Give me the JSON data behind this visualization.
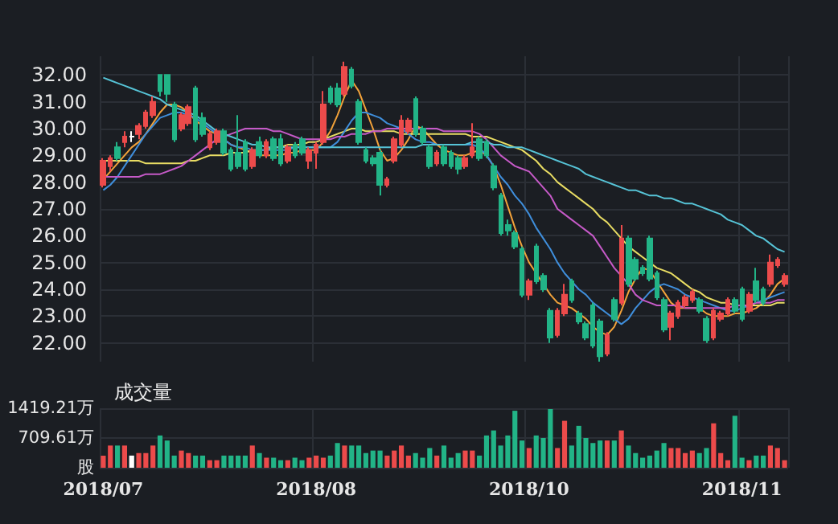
{
  "chart_data": [
    {
      "type": "candlestick",
      "tick_labels": "y",
      "grid": true,
      "categories": [
        "2018/07",
        null,
        null,
        null,
        null,
        null,
        null,
        null,
        null,
        null,
        null,
        null,
        null,
        null,
        null,
        null,
        null,
        null,
        null,
        null,
        null,
        null,
        null,
        null,
        null,
        null,
        null,
        null,
        null,
        null,
        "2018/08",
        null,
        null,
        null,
        null,
        null,
        null,
        null,
        null,
        null,
        null,
        null,
        null,
        null,
        null,
        null,
        null,
        null,
        null,
        null,
        null,
        null,
        null,
        null,
        null,
        null,
        null,
        null,
        null,
        null,
        "2018/10",
        null,
        null,
        null,
        null,
        null,
        null,
        null,
        null,
        null,
        null,
        null,
        null,
        null,
        null,
        null,
        null,
        null,
        null,
        null,
        null,
        null,
        null,
        null,
        null,
        null,
        null,
        null,
        null,
        null,
        "2018/11",
        null,
        null,
        null,
        null,
        null,
        null
      ],
      "ylim": [
        21.3,
        32.7
      ],
      "yticks": [
        {
          "value": 22,
          "label": "22.00"
        },
        {
          "value": 23,
          "label": "23.00"
        },
        {
          "value": 24,
          "label": "24.00"
        },
        {
          "value": 25,
          "label": "25.00"
        },
        {
          "value": 26,
          "label": "26.00"
        },
        {
          "value": 27,
          "label": "27.00"
        },
        {
          "value": 28,
          "label": "28.00"
        },
        {
          "value": 29,
          "label": "29.00"
        },
        {
          "value": 30,
          "label": "30.00"
        },
        {
          "value": 31,
          "label": "31.00"
        },
        {
          "value": 32,
          "label": "32.00"
        }
      ],
      "ohlc": [
        [
          27.9,
          28.9,
          27.8,
          28.8
        ],
        [
          28.6,
          29.0,
          28.4,
          28.9
        ],
        [
          29.3,
          29.5,
          28.8,
          28.9
        ],
        [
          29.5,
          29.9,
          29.3,
          29.7
        ],
        [
          29.7,
          29.9,
          29.5,
          29.7
        ],
        [
          29.8,
          30.2,
          29.6,
          30.1
        ],
        [
          30.1,
          30.7,
          30.0,
          30.6
        ],
        [
          30.5,
          31.2,
          30.4,
          31.0
        ],
        [
          32.0,
          32.0,
          31.2,
          31.4
        ],
        [
          32.0,
          32.0,
          31.0,
          31.3
        ],
        [
          30.9,
          31.0,
          29.5,
          29.6
        ],
        [
          30.0,
          30.6,
          29.9,
          30.5
        ],
        [
          30.2,
          30.9,
          30.1,
          30.8
        ],
        [
          31.5,
          31.6,
          29.5,
          29.6
        ],
        [
          30.4,
          30.6,
          29.7,
          29.8
        ],
        [
          29.3,
          29.9,
          29.2,
          29.8
        ],
        [
          29.5,
          30.0,
          29.4,
          29.9
        ],
        [
          29.9,
          30.0,
          29.0,
          29.1
        ],
        [
          29.2,
          29.3,
          28.4,
          28.5
        ],
        [
          29.1,
          30.5,
          28.5,
          28.6
        ],
        [
          29.5,
          29.6,
          28.4,
          28.5
        ],
        [
          28.6,
          29.3,
          28.5,
          29.2
        ],
        [
          29.5,
          29.7,
          28.9,
          29.0
        ],
        [
          29.0,
          29.6,
          28.9,
          29.5
        ],
        [
          29.6,
          29.7,
          28.8,
          28.9
        ],
        [
          29.6,
          29.8,
          28.6,
          28.7
        ],
        [
          28.8,
          29.4,
          28.7,
          29.3
        ],
        [
          29.4,
          29.5,
          28.9,
          29.0
        ],
        [
          29.6,
          29.7,
          29.0,
          29.1
        ],
        [
          28.8,
          29.3,
          28.5,
          29.2
        ],
        [
          29.1,
          29.5,
          28.5,
          29.4
        ],
        [
          29.5,
          31.4,
          29.4,
          30.9
        ],
        [
          31.5,
          31.6,
          30.9,
          31.0
        ],
        [
          31.5,
          31.7,
          30.8,
          30.9
        ],
        [
          31.3,
          32.5,
          31.2,
          32.3
        ],
        [
          32.2,
          32.3,
          31.5,
          31.6
        ],
        [
          31.0,
          31.1,
          29.4,
          29.5
        ],
        [
          29.2,
          29.3,
          28.7,
          28.8
        ],
        [
          28.9,
          29.0,
          28.6,
          28.7
        ],
        [
          29.1,
          29.2,
          27.5,
          27.9
        ],
        [
          27.9,
          28.2,
          27.8,
          28.1
        ],
        [
          28.8,
          29.7,
          28.7,
          29.6
        ],
        [
          29.4,
          30.5,
          29.3,
          30.3
        ],
        [
          29.9,
          30.4,
          29.8,
          30.3
        ],
        [
          31.1,
          31.2,
          29.7,
          29.8
        ],
        [
          30.0,
          30.1,
          29.4,
          29.5
        ],
        [
          29.3,
          29.4,
          28.5,
          28.6
        ],
        [
          28.7,
          29.2,
          28.6,
          29.1
        ],
        [
          29.3,
          29.4,
          28.6,
          28.7
        ],
        [
          29.1,
          29.2,
          28.5,
          28.6
        ],
        [
          28.9,
          29.0,
          28.3,
          28.5
        ],
        [
          28.6,
          29.0,
          28.5,
          28.9
        ],
        [
          29.0,
          30.2,
          28.9,
          29.3
        ],
        [
          29.6,
          29.7,
          28.8,
          28.9
        ],
        [
          29.5,
          29.6,
          28.9,
          29.0
        ],
        [
          28.6,
          28.7,
          27.7,
          27.8
        ],
        [
          27.5,
          27.6,
          26.0,
          26.1
        ],
        [
          26.4,
          26.6,
          26.0,
          26.2
        ],
        [
          26.1,
          26.2,
          25.5,
          25.6
        ],
        [
          25.5,
          25.6,
          23.7,
          23.8
        ],
        [
          23.8,
          24.4,
          23.6,
          24.3
        ],
        [
          25.6,
          25.7,
          24.2,
          24.3
        ],
        [
          24.5,
          24.6,
          23.9,
          24.0
        ],
        [
          23.2,
          23.3,
          22.0,
          22.2
        ],
        [
          22.3,
          23.3,
          22.2,
          23.2
        ],
        [
          23.1,
          24.2,
          23.0,
          23.8
        ],
        [
          24.3,
          24.4,
          23.5,
          23.6
        ],
        [
          23.1,
          23.2,
          22.7,
          22.8
        ],
        [
          22.7,
          22.8,
          22.1,
          22.2
        ],
        [
          23.4,
          23.5,
          21.8,
          21.9
        ],
        [
          22.8,
          22.9,
          21.3,
          21.5
        ],
        [
          21.6,
          22.4,
          21.5,
          22.3
        ],
        [
          23.6,
          23.7,
          22.8,
          22.9
        ],
        [
          23.5,
          26.4,
          23.4,
          25.9
        ],
        [
          25.9,
          26.0,
          24.1,
          24.2
        ],
        [
          25.1,
          25.2,
          24.3,
          24.4
        ],
        [
          24.8,
          24.9,
          24.5,
          24.6
        ],
        [
          25.9,
          26.0,
          24.3,
          24.4
        ],
        [
          24.6,
          24.7,
          23.6,
          23.7
        ],
        [
          23.6,
          23.7,
          22.4,
          22.5
        ],
        [
          22.6,
          23.2,
          22.1,
          23.1
        ],
        [
          23.0,
          23.6,
          22.9,
          23.5
        ],
        [
          23.4,
          23.8,
          23.3,
          23.7
        ],
        [
          23.6,
          24.0,
          23.5,
          23.9
        ],
        [
          23.6,
          23.7,
          23.1,
          23.2
        ],
        [
          22.9,
          23.0,
          22.0,
          22.1
        ],
        [
          22.2,
          23.3,
          22.1,
          23.2
        ],
        [
          22.9,
          23.2,
          22.8,
          23.1
        ],
        [
          23.1,
          23.7,
          23.0,
          23.6
        ],
        [
          23.6,
          23.7,
          23.1,
          23.2
        ],
        [
          24.0,
          24.1,
          22.8,
          22.9
        ],
        [
          23.2,
          23.9,
          23.1,
          23.8
        ],
        [
          24.3,
          24.8,
          23.5,
          23.6
        ],
        [
          24.0,
          24.1,
          23.4,
          23.5
        ],
        [
          24.2,
          25.3,
          24.1,
          25.0
        ],
        [
          24.9,
          25.2,
          24.8,
          25.1
        ],
        [
          24.2,
          24.6,
          24.1,
          24.5
        ]
      ],
      "colors": [
        "#ec4b4b",
        "#ec4b4b",
        "#22b487",
        "#ec4b4b",
        "#ffffff",
        "#ec4b4b",
        "#ec4b4b",
        "#ec4b4b",
        "#22b487",
        "#22b487",
        "#22b487",
        "#ec4b4b",
        "#ec4b4b",
        "#22b487",
        "#22b487",
        "#ec4b4b",
        "#ec4b4b",
        "#22b487",
        "#22b487",
        "#22b487",
        "#22b487",
        "#ec4b4b",
        "#22b487",
        "#ec4b4b",
        "#22b487",
        "#22b487",
        "#ec4b4b",
        "#22b487",
        "#22b487",
        "#ec4b4b",
        "#ec4b4b",
        "#ec4b4b",
        "#22b487",
        "#22b487",
        "#ec4b4b",
        "#22b487",
        "#22b487",
        "#22b487",
        "#22b487",
        "#22b487",
        "#ec4b4b",
        "#ec4b4b",
        "#ec4b4b",
        "#ec4b4b",
        "#22b487",
        "#22b487",
        "#22b487",
        "#ec4b4b",
        "#22b487",
        "#22b487",
        "#22b487",
        "#ec4b4b",
        "#ec4b4b",
        "#22b487",
        "#22b487",
        "#22b487",
        "#22b487",
        "#22b487",
        "#22b487",
        "#22b487",
        "#ec4b4b",
        "#22b487",
        "#22b487",
        "#22b487",
        "#ec4b4b",
        "#ec4b4b",
        "#22b487",
        "#22b487",
        "#22b487",
        "#22b487",
        "#22b487",
        "#ec4b4b",
        "#22b487",
        "#ec4b4b",
        "#22b487",
        "#22b487",
        "#22b487",
        "#22b487",
        "#22b487",
        "#22b487",
        "#ec4b4b",
        "#ec4b4b",
        "#ec4b4b",
        "#ec4b4b",
        "#22b487",
        "#22b487",
        "#ec4b4b",
        "#ec4b4b",
        "#ec4b4b",
        "#22b487",
        "#22b487",
        "#ec4b4b",
        "#22b487",
        "#22b487",
        "#ec4b4b",
        "#ec4b4b",
        "#ec4b4b"
      ],
      "series": [
        {
          "type": "line",
          "color": "#f2a23a",
          "values": [
            28.1,
            28.4,
            28.7,
            29.0,
            29.3,
            29.5,
            29.8,
            30.2,
            30.6,
            30.9,
            30.9,
            30.8,
            30.6,
            30.3,
            30.1,
            29.9,
            29.8,
            29.6,
            29.4,
            29.3,
            29.2,
            29.1,
            29.0,
            29.0,
            29.0,
            29.0,
            29.1,
            29.1,
            29.2,
            29.2,
            29.2,
            29.5,
            29.9,
            30.5,
            31.2,
            31.8,
            31.4,
            30.7,
            30.0,
            29.2,
            28.8,
            28.9,
            29.2,
            29.6,
            30.1,
            30.0,
            29.7,
            29.4,
            29.2,
            29.1,
            29.0,
            29.0,
            29.1,
            29.2,
            29.0,
            28.6,
            27.9,
            27.1,
            26.3,
            25.6,
            25.0,
            24.6,
            24.2,
            23.8,
            23.5,
            23.4,
            23.3,
            23.1,
            22.9,
            22.6,
            22.4,
            22.3,
            22.6,
            23.2,
            23.9,
            24.4,
            24.8,
            24.7,
            24.3,
            23.9,
            23.5,
            23.3,
            23.3,
            23.3,
            23.3,
            23.1,
            23.0,
            23.0,
            23.0,
            23.1,
            23.1,
            23.2,
            23.3,
            23.5,
            23.8,
            24.2,
            24.4
          ]
        },
        {
          "type": "line",
          "color": "#e8dc63",
          "values": [
            28.8,
            28.8,
            28.8,
            28.8,
            28.8,
            28.8,
            28.7,
            28.7,
            28.7,
            28.7,
            28.7,
            28.7,
            28.8,
            28.8,
            28.9,
            29.0,
            29.0,
            29.0,
            29.1,
            29.1,
            29.1,
            29.2,
            29.2,
            29.2,
            29.3,
            29.3,
            29.4,
            29.4,
            29.4,
            29.5,
            29.5,
            29.6,
            29.7,
            29.8,
            29.9,
            30.0,
            30.0,
            29.9,
            29.9,
            29.9,
            29.9,
            29.9,
            29.8,
            29.8,
            29.8,
            29.8,
            29.8,
            29.8,
            29.8,
            29.8,
            29.8,
            29.8,
            29.7,
            29.7,
            29.7,
            29.6,
            29.5,
            29.4,
            29.3,
            29.2,
            29.0,
            28.8,
            28.5,
            28.3,
            28.0,
            27.8,
            27.6,
            27.4,
            27.2,
            27.0,
            26.7,
            26.5,
            26.2,
            25.9,
            25.6,
            25.4,
            25.2,
            25.0,
            24.8,
            24.7,
            24.6,
            24.4,
            24.2,
            24.0,
            23.9,
            23.7,
            23.6,
            23.5,
            23.5,
            23.4,
            23.4,
            23.4,
            23.4,
            23.4,
            23.4,
            23.5,
            23.5
          ]
        },
        {
          "type": "line",
          "color": "#3f8edb",
          "values": [
            27.7,
            27.9,
            28.2,
            28.6,
            29.0,
            29.4,
            29.8,
            30.1,
            30.4,
            30.5,
            30.6,
            30.6,
            30.5,
            30.4,
            30.2,
            30.0,
            29.8,
            29.6,
            29.4,
            29.3,
            29.3,
            29.2,
            29.2,
            29.2,
            29.2,
            29.2,
            29.2,
            29.3,
            29.3,
            29.3,
            29.3,
            29.3,
            29.3,
            29.5,
            29.9,
            30.3,
            30.6,
            30.6,
            30.5,
            30.4,
            30.2,
            30.1,
            30.0,
            29.8,
            29.6,
            29.5,
            29.5,
            29.4,
            29.4,
            29.4,
            29.4,
            29.4,
            29.4,
            29.3,
            29.0,
            28.6,
            28.2,
            27.9,
            27.5,
            27.2,
            26.8,
            26.3,
            25.9,
            25.5,
            25.0,
            24.6,
            24.3,
            24.0,
            23.8,
            23.5,
            23.3,
            23.1,
            22.9,
            22.7,
            22.9,
            23.3,
            23.6,
            23.9,
            24.1,
            24.2,
            24.1,
            24.0,
            23.8,
            23.7,
            23.6,
            23.5,
            23.4,
            23.3,
            23.2,
            23.2,
            23.3,
            23.4,
            23.5,
            23.6,
            23.7,
            23.8,
            23.9
          ]
        },
        {
          "type": "line",
          "color": "#c65ac8",
          "values": [
            28.2,
            28.2,
            28.2,
            28.2,
            28.2,
            28.2,
            28.3,
            28.3,
            28.3,
            28.4,
            28.5,
            28.6,
            28.8,
            29.0,
            29.2,
            29.4,
            29.6,
            29.7,
            29.8,
            29.9,
            30.0,
            30.0,
            30.0,
            30.0,
            29.9,
            29.9,
            29.8,
            29.7,
            29.6,
            29.6,
            29.6,
            29.6,
            29.6,
            29.7,
            29.7,
            29.8,
            29.8,
            29.8,
            29.9,
            29.9,
            30.0,
            30.0,
            30.0,
            30.0,
            30.0,
            30.0,
            30.0,
            30.0,
            29.9,
            29.9,
            29.9,
            29.9,
            29.9,
            29.8,
            29.6,
            29.3,
            29.0,
            28.8,
            28.6,
            28.5,
            28.4,
            28.1,
            27.8,
            27.5,
            27.0,
            26.8,
            26.6,
            26.4,
            26.2,
            26.0,
            25.6,
            25.2,
            24.8,
            24.5,
            24.2,
            23.8,
            23.6,
            23.5,
            23.4,
            23.4,
            23.4,
            23.4,
            23.3,
            23.3,
            23.3,
            23.3,
            23.3,
            23.3,
            23.3,
            23.4,
            23.4,
            23.4,
            23.5,
            23.5,
            23.5,
            23.6,
            23.6
          ]
        },
        {
          "type": "line",
          "color": "#56c3d6",
          "values": [
            31.9,
            31.8,
            31.7,
            31.6,
            31.5,
            31.4,
            31.3,
            31.2,
            31.1,
            30.9,
            30.8,
            30.7,
            30.6,
            30.5,
            30.3,
            30.1,
            29.9,
            29.8,
            29.7,
            29.6,
            29.5,
            29.4,
            29.4,
            29.3,
            29.3,
            29.3,
            29.3,
            29.3,
            29.3,
            29.3,
            29.3,
            29.3,
            29.3,
            29.3,
            29.3,
            29.3,
            29.3,
            29.3,
            29.3,
            29.3,
            29.3,
            29.3,
            29.3,
            29.3,
            29.3,
            29.4,
            29.4,
            29.4,
            29.4,
            29.4,
            29.4,
            29.4,
            29.5,
            29.5,
            29.5,
            29.4,
            29.4,
            29.3,
            29.3,
            29.3,
            29.2,
            29.1,
            29.0,
            28.9,
            28.8,
            28.7,
            28.6,
            28.5,
            28.3,
            28.2,
            28.1,
            28.0,
            27.9,
            27.8,
            27.7,
            27.7,
            27.6,
            27.5,
            27.5,
            27.4,
            27.4,
            27.3,
            27.2,
            27.2,
            27.1,
            27.0,
            26.9,
            26.8,
            26.6,
            26.5,
            26.4,
            26.2,
            26.0,
            25.9,
            25.7,
            25.5,
            25.4
          ]
        }
      ]
    },
    {
      "type": "bar",
      "title": "成交量",
      "grid": true,
      "categories": [
        "2018/07",
        null,
        null,
        null,
        null,
        null,
        null,
        null,
        null,
        null,
        null,
        null,
        null,
        null,
        null,
        null,
        null,
        null,
        null,
        null,
        null,
        null,
        null,
        null,
        null,
        null,
        null,
        null,
        null,
        null,
        "2018/08",
        null,
        null,
        null,
        null,
        null,
        null,
        null,
        null,
        null,
        null,
        null,
        null,
        null,
        null,
        null,
        null,
        null,
        null,
        null,
        null,
        null,
        null,
        null,
        null,
        null,
        null,
        null,
        null,
        null,
        "2018/10",
        null,
        null,
        null,
        null,
        null,
        null,
        null,
        null,
        null,
        null,
        null,
        null,
        null,
        null,
        null,
        null,
        null,
        null,
        null,
        null,
        null,
        null,
        null,
        null,
        null,
        null,
        null,
        null,
        null,
        "2018/11",
        null,
        null,
        null,
        null,
        null,
        null
      ],
      "ylim": [
        0,
        1419.21
      ],
      "yticks": [
        {
          "value": 0,
          "label": "股"
        },
        {
          "value": 709.61,
          "label": "709.61万"
        },
        {
          "value": 1419.21,
          "label": "1419.21万"
        }
      ],
      "values": [
        290,
        530,
        530,
        530,
        290,
        350,
        350,
        530,
        770,
        650,
        290,
        410,
        350,
        290,
        290,
        180,
        180,
        290,
        290,
        290,
        290,
        530,
        350,
        240,
        240,
        180,
        180,
        240,
        180,
        240,
        290,
        240,
        290,
        590,
        530,
        530,
        530,
        350,
        410,
        410,
        290,
        410,
        530,
        290,
        350,
        240,
        470,
        290,
        530,
        240,
        350,
        410,
        410,
        290,
        770,
        890,
        530,
        770,
        1360,
        650,
        470,
        770,
        710,
        1400,
        470,
        1120,
        530,
        1000,
        710,
        590,
        650,
        650,
        650,
        890,
        530,
        350,
        240,
        290,
        410,
        590,
        470,
        470,
        350,
        410,
        350,
        470,
        1060,
        350,
        180,
        1240,
        240,
        180,
        290,
        290,
        530,
        470,
        180
      ],
      "colors": [
        "#ec4b4b",
        "#ec4b4b",
        "#22b487",
        "#ec4b4b",
        "#ffffff",
        "#ec4b4b",
        "#ec4b4b",
        "#ec4b4b",
        "#22b487",
        "#22b487",
        "#22b487",
        "#ec4b4b",
        "#ec4b4b",
        "#22b487",
        "#22b487",
        "#ec4b4b",
        "#ec4b4b",
        "#22b487",
        "#22b487",
        "#22b487",
        "#22b487",
        "#ec4b4b",
        "#22b487",
        "#ec4b4b",
        "#22b487",
        "#22b487",
        "#ec4b4b",
        "#22b487",
        "#22b487",
        "#ec4b4b",
        "#ec4b4b",
        "#ec4b4b",
        "#22b487",
        "#22b487",
        "#ec4b4b",
        "#22b487",
        "#22b487",
        "#22b487",
        "#22b487",
        "#22b487",
        "#ec4b4b",
        "#ec4b4b",
        "#ec4b4b",
        "#ec4b4b",
        "#22b487",
        "#22b487",
        "#22b487",
        "#ec4b4b",
        "#22b487",
        "#22b487",
        "#22b487",
        "#ec4b4b",
        "#ec4b4b",
        "#22b487",
        "#22b487",
        "#22b487",
        "#22b487",
        "#22b487",
        "#22b487",
        "#22b487",
        "#ec4b4b",
        "#22b487",
        "#22b487",
        "#22b487",
        "#ec4b4b",
        "#ec4b4b",
        "#22b487",
        "#22b487",
        "#22b487",
        "#22b487",
        "#22b487",
        "#ec4b4b",
        "#22b487",
        "#ec4b4b",
        "#22b487",
        "#22b487",
        "#22b487",
        "#22b487",
        "#22b487",
        "#22b487",
        "#ec4b4b",
        "#ec4b4b",
        "#ec4b4b",
        "#ec4b4b",
        "#22b487",
        "#22b487",
        "#ec4b4b",
        "#ec4b4b",
        "#ec4b4b",
        "#22b487",
        "#22b487",
        "#ec4b4b",
        "#22b487",
        "#22b487",
        "#ec4b4b",
        "#ec4b4b",
        "#ec4b4b"
      ]
    }
  ]
}
